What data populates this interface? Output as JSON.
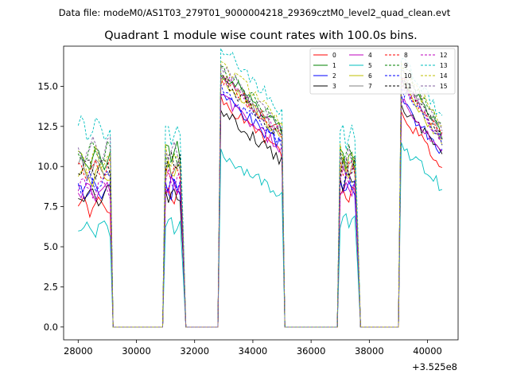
{
  "header": {
    "supertitle": "Data file: modeM0/AS1T03_279T01_9000004218_29369cztM0_level2_quad_clean.evt"
  },
  "chart_data": {
    "type": "line",
    "title": "Quadrant 1 module wise count rates with 100.0s bins.",
    "xlabel": "",
    "ylabel": "",
    "x_offset_label": "+3.525e8",
    "xlim": [
      27500,
      41050
    ],
    "ylim": [
      -0.8,
      17.5
    ],
    "xticks": [
      28000,
      30000,
      32000,
      34000,
      36000,
      38000,
      40000
    ],
    "xtick_labels": [
      "28000",
      "30000",
      "32000",
      "34000",
      "36000",
      "38000",
      "40000"
    ],
    "yticks": [
      0.0,
      2.5,
      5.0,
      7.5,
      10.0,
      12.5,
      15.0
    ],
    "ytick_labels": [
      "0.0",
      "2.5",
      "5.0",
      "7.5",
      "10.0",
      "12.5",
      "15.0"
    ],
    "grid": false,
    "legend_location": "top-right",
    "legend_columns": 4,
    "bin_seconds": 100,
    "segments": [
      {
        "start": 28000,
        "end": 29100,
        "peak_drop": false
      },
      {
        "start": 31000,
        "end": 31650,
        "peak_drop": true
      },
      {
        "start": 32900,
        "end": 35000,
        "peak_drop": false
      },
      {
        "start": 37000,
        "end": 37650,
        "peak_drop": true
      },
      {
        "start": 39100,
        "end": 40500,
        "peak_drop": false
      }
    ],
    "series": [
      {
        "name": "0",
        "color": "#ff0000",
        "style": "solid",
        "levels": [
          7.5,
          8.3,
          13.0,
          8.2,
          12.2
        ]
      },
      {
        "name": "1",
        "color": "#008000",
        "style": "solid",
        "levels": [
          10.5,
          10.8,
          14.8,
          10.4,
          14.5
        ]
      },
      {
        "name": "2",
        "color": "#0000ff",
        "style": "solid",
        "levels": [
          8.5,
          8.5,
          13.5,
          8.8,
          13.0
        ]
      },
      {
        "name": "3",
        "color": "#000000",
        "style": "solid",
        "levels": [
          8.2,
          8.3,
          12.5,
          9.2,
          12.8
        ]
      },
      {
        "name": "4",
        "color": "#bf00bf",
        "style": "solid",
        "levels": [
          8.5,
          8.8,
          13.3,
          8.5,
          13.2
        ]
      },
      {
        "name": "5",
        "color": "#00bfbf",
        "style": "solid",
        "levels": [
          6.2,
          6.3,
          10.0,
          6.8,
          10.5
        ]
      },
      {
        "name": "6",
        "color": "#bfbf00",
        "style": "solid",
        "levels": [
          9.5,
          9.8,
          14.3,
          9.8,
          14.0
        ]
      },
      {
        "name": "7",
        "color": "#808080",
        "style": "solid",
        "levels": [
          9.8,
          10.0,
          14.5,
          10.0,
          14.2
        ]
      },
      {
        "name": "8",
        "color": "#ff0000",
        "style": "dashed",
        "levels": [
          9.8,
          9.5,
          14.4,
          10.0,
          14.3
        ]
      },
      {
        "name": "9",
        "color": "#008000",
        "style": "dashed",
        "levels": [
          10.8,
          10.5,
          15.0,
          10.8,
          15.2
        ]
      },
      {
        "name": "10",
        "color": "#0000ff",
        "style": "dashed",
        "levels": [
          9.0,
          9.0,
          13.8,
          9.2,
          13.8
        ]
      },
      {
        "name": "11",
        "color": "#000000",
        "style": "dashed",
        "levels": [
          10.0,
          10.2,
          14.3,
          10.1,
          14.4
        ]
      },
      {
        "name": "12",
        "color": "#bf00bf",
        "style": "dashed",
        "levels": [
          8.7,
          9.2,
          14.6,
          9.5,
          14.1
        ]
      },
      {
        "name": "13",
        "color": "#00bfbf",
        "style": "dashed",
        "levels": [
          12.3,
          12.0,
          16.2,
          11.8,
          15.6
        ]
      },
      {
        "name": "14",
        "color": "#bfbf00",
        "style": "dashed",
        "levels": [
          10.5,
          10.5,
          15.3,
          10.5,
          15.0
        ]
      },
      {
        "name": "15",
        "color": "#8060a0",
        "style": "dashed",
        "levels": [
          11.0,
          10.8,
          15.0,
          10.6,
          14.8
        ]
      }
    ]
  }
}
